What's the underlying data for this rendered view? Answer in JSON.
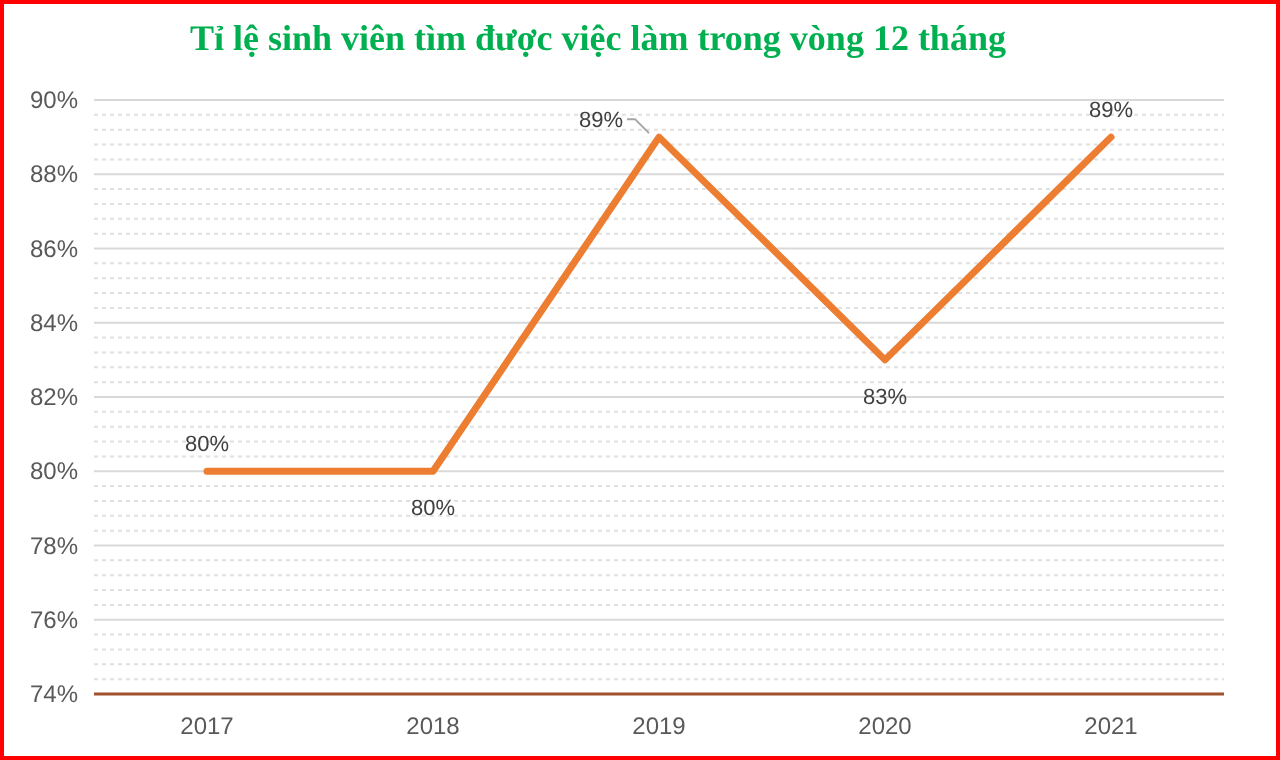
{
  "chart_data": {
    "type": "line",
    "title": "Tỉ lệ sinh viên tìm được việc làm trong vòng 12 tháng",
    "categories": [
      "2017",
      "2018",
      "2019",
      "2020",
      "2021"
    ],
    "series": [
      {
        "color": "#ed7d31",
        "values": [
          80,
          80,
          89,
          83,
          89
        ],
        "value_labels": [
          "80%",
          "80%",
          "89%",
          "83%",
          "89%"
        ]
      }
    ],
    "ylim": [
      74,
      90
    ],
    "yticks": [
      {
        "value": 74,
        "label": "74%"
      },
      {
        "value": 74.4,
        "label": null
      },
      {
        "value": 74.8,
        "label": null
      },
      {
        "value": 75.2,
        "label": null
      },
      {
        "value": 75.6,
        "label": null
      },
      {
        "value": 76,
        "label": "76%"
      },
      {
        "value": 76.4,
        "label": null
      },
      {
        "value": 76.8,
        "label": null
      },
      {
        "value": 77.2,
        "label": null
      },
      {
        "value": 77.6,
        "label": null
      },
      {
        "value": 78,
        "label": "78%"
      },
      {
        "value": 78.4,
        "label": null
      },
      {
        "value": 78.8,
        "label": null
      },
      {
        "value": 79.2,
        "label": null
      },
      {
        "value": 79.6,
        "label": null
      },
      {
        "value": 80,
        "label": "80%"
      },
      {
        "value": 80.4,
        "label": null
      },
      {
        "value": 80.8,
        "label": null
      },
      {
        "value": 81.2,
        "label": null
      },
      {
        "value": 81.6,
        "label": null
      },
      {
        "value": 82,
        "label": "82%"
      },
      {
        "value": 82.4,
        "label": null
      },
      {
        "value": 82.8,
        "label": null
      },
      {
        "value": 83.2,
        "label": null
      },
      {
        "value": 83.6,
        "label": null
      },
      {
        "value": 84,
        "label": "84%"
      },
      {
        "value": 84.4,
        "label": null
      },
      {
        "value": 84.8,
        "label": null
      },
      {
        "value": 85.2,
        "label": null
      },
      {
        "value": 85.6,
        "label": null
      },
      {
        "value": 86,
        "label": "86%"
      },
      {
        "value": 86.4,
        "label": null
      },
      {
        "value": 86.8,
        "label": null
      },
      {
        "value": 87.2,
        "label": null
      },
      {
        "value": 87.6,
        "label": null
      },
      {
        "value": 88,
        "label": "88%"
      },
      {
        "value": 88.4,
        "label": null
      },
      {
        "value": 88.8,
        "label": null
      },
      {
        "value": 89.2,
        "label": null
      },
      {
        "value": 89.6,
        "label": null
      },
      {
        "value": 90,
        "label": "90%"
      }
    ],
    "grid": "y",
    "marker": "none",
    "line_style": "solid"
  }
}
